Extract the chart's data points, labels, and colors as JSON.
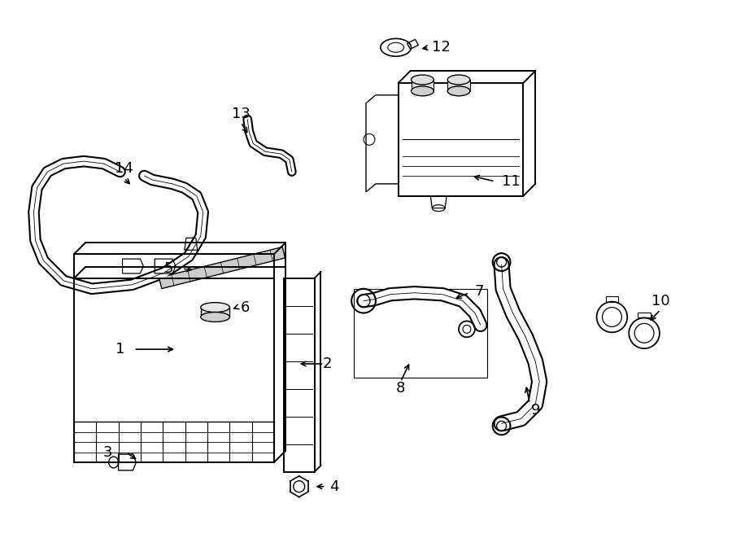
{
  "background_color": "#ffffff",
  "line_color": "#000000",
  "text_color": "#000000",
  "fig_width": 9.0,
  "fig_height": 6.61,
  "dpi": 100,
  "lw": 1.4,
  "label_fontsize": 13
}
